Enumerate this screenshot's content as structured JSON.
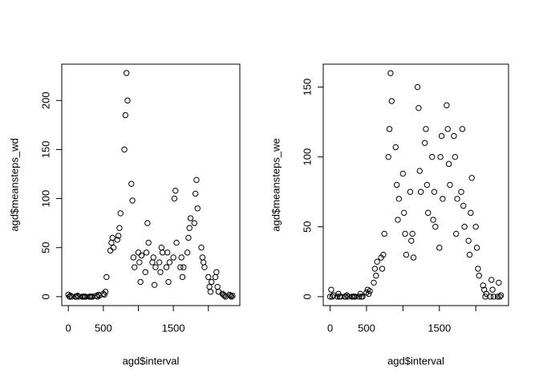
{
  "chart_data": [
    {
      "type": "scatter",
      "xlabel": "agd$interval",
      "ylabel": "agd$meansteps_wd",
      "x": [
        0,
        15,
        30,
        45,
        100,
        115,
        130,
        145,
        200,
        215,
        230,
        245,
        300,
        315,
        330,
        345,
        400,
        415,
        430,
        445,
        500,
        515,
        530,
        545,
        600,
        615,
        630,
        645,
        700,
        715,
        730,
        745,
        800,
        815,
        830,
        845,
        900,
        915,
        930,
        945,
        1000,
        1015,
        1030,
        1045,
        1100,
        1115,
        1130,
        1145,
        1200,
        1215,
        1230,
        1245,
        1300,
        1315,
        1330,
        1345,
        1400,
        1415,
        1430,
        1445,
        1500,
        1515,
        1530,
        1545,
        1600,
        1615,
        1630,
        1645,
        1700,
        1715,
        1730,
        1745,
        1800,
        1815,
        1830,
        1845,
        1900,
        1915,
        1930,
        1945,
        2000,
        2015,
        2030,
        2045,
        2100,
        2115,
        2130,
        2145,
        2200,
        2215,
        2230,
        2245,
        2300,
        2315,
        2330,
        2345
      ],
      "values": [
        2,
        0,
        1,
        0,
        0,
        0,
        1,
        0,
        0,
        0,
        0,
        0,
        0,
        0,
        0,
        0,
        1,
        0,
        2,
        1,
        3,
        2,
        5,
        20,
        47,
        55,
        60,
        50,
        58,
        62,
        70,
        85,
        150,
        185,
        228,
        200,
        115,
        98,
        40,
        30,
        45,
        35,
        15,
        42,
        25,
        45,
        75,
        55,
        35,
        40,
        12,
        30,
        35,
        25,
        50,
        45,
        30,
        45,
        15,
        35,
        40,
        100,
        108,
        55,
        30,
        40,
        20,
        30,
        45,
        60,
        70,
        80,
        75,
        105,
        119,
        90,
        50,
        40,
        35,
        30,
        20,
        10,
        5,
        15,
        20,
        25,
        10,
        5,
        3,
        2,
        1,
        0,
        2,
        1,
        0,
        1
      ],
      "color": "#000000",
      "xlim": [
        -94.2,
        2449.2
      ],
      "ylim": [
        -9.1,
        237
      ],
      "xticks": [
        0,
        500,
        {
          "value": 1000,
          "label": null
        },
        1500,
        {
          "value": 2000,
          "label": null
        }
      ],
      "yticks": [
        0,
        50,
        100,
        150,
        200
      ]
    },
    {
      "type": "scatter",
      "xlabel": "agd$interval",
      "ylabel": "agd$meansteps_we",
      "x": [
        0,
        15,
        30,
        45,
        100,
        115,
        130,
        145,
        200,
        215,
        230,
        245,
        300,
        315,
        330,
        345,
        400,
        415,
        430,
        445,
        500,
        515,
        530,
        545,
        600,
        615,
        630,
        645,
        700,
        715,
        730,
        745,
        800,
        815,
        830,
        845,
        900,
        915,
        930,
        945,
        1000,
        1015,
        1030,
        1045,
        1100,
        1115,
        1130,
        1145,
        1200,
        1215,
        1230,
        1245,
        1300,
        1315,
        1330,
        1345,
        1400,
        1415,
        1430,
        1445,
        1500,
        1515,
        1530,
        1545,
        1600,
        1615,
        1630,
        1645,
        1700,
        1715,
        1730,
        1745,
        1800,
        1815,
        1830,
        1845,
        1900,
        1915,
        1930,
        1945,
        2000,
        2015,
        2030,
        2045,
        2100,
        2115,
        2130,
        2145,
        2200,
        2215,
        2230,
        2245,
        2300,
        2315,
        2330,
        2345
      ],
      "values": [
        0,
        5,
        0,
        1,
        0,
        2,
        0,
        0,
        0,
        0,
        1,
        0,
        0,
        0,
        0,
        0,
        0,
        2,
        0,
        0,
        3,
        5,
        2,
        4,
        10,
        20,
        15,
        25,
        28,
        20,
        30,
        45,
        100,
        120,
        160,
        140,
        107,
        80,
        55,
        70,
        88,
        60,
        45,
        30,
        75,
        40,
        45,
        28,
        150,
        135,
        90,
        75,
        110,
        120,
        80,
        60,
        100,
        55,
        75,
        50,
        35,
        100,
        115,
        70,
        137,
        120,
        95,
        80,
        115,
        100,
        45,
        70,
        75,
        120,
        65,
        50,
        40,
        30,
        60,
        85,
        50,
        35,
        20,
        15,
        8,
        5,
        0,
        2,
        0,
        12,
        5,
        0,
        0,
        10,
        0,
        1
      ],
      "color": "#000000",
      "xlim": [
        -94.2,
        2449.2
      ],
      "ylim": [
        -6.4,
        166.4
      ],
      "xticks": [
        0,
        500,
        {
          "value": 1000,
          "label": null
        },
        1500,
        {
          "value": 2000,
          "label": null
        }
      ],
      "yticks": [
        0,
        50,
        100,
        150
      ]
    }
  ]
}
